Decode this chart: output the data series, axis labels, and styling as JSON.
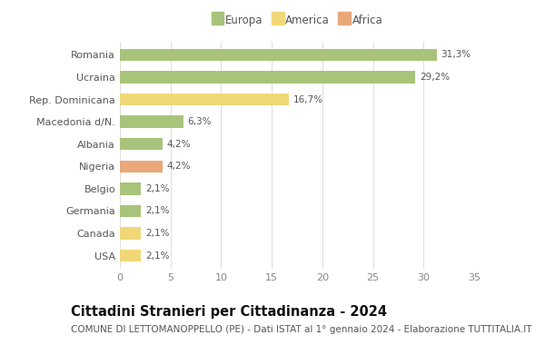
{
  "title": "Cittadini Stranieri per Cittadinanza - 2024",
  "subtitle": "COMUNE DI LETTOMANOPPELLO (PE) - Dati ISTAT al 1° gennaio 2024 - Elaborazione TUTTITALIA.IT",
  "categories": [
    "Romania",
    "Ucraina",
    "Rep. Dominicana",
    "Macedonia d/N.",
    "Albania",
    "Nigeria",
    "Belgio",
    "Germania",
    "Canada",
    "USA"
  ],
  "values": [
    31.3,
    29.2,
    16.7,
    6.3,
    4.2,
    4.2,
    2.1,
    2.1,
    2.1,
    2.1
  ],
  "labels": [
    "31,3%",
    "29,2%",
    "16,7%",
    "6,3%",
    "4,2%",
    "4,2%",
    "2,1%",
    "2,1%",
    "2,1%",
    "2,1%"
  ],
  "continent": [
    "Europa",
    "Europa",
    "America",
    "Europa",
    "Europa",
    "Africa",
    "Europa",
    "Europa",
    "America",
    "America"
  ],
  "colors": {
    "Europa": "#a8c47a",
    "America": "#f0d878",
    "Africa": "#e8a87a"
  },
  "legend_items": [
    "Europa",
    "America",
    "Africa"
  ],
  "xlim": [
    0,
    35
  ],
  "xticks": [
    0,
    5,
    10,
    15,
    20,
    25,
    30,
    35
  ],
  "background_color": "#ffffff",
  "grid_color": "#dddddd",
  "bar_height": 0.55,
  "title_fontsize": 10.5,
  "subtitle_fontsize": 7.5,
  "label_fontsize": 7.5,
  "ytick_fontsize": 8,
  "xtick_fontsize": 8,
  "legend_fontsize": 8.5
}
